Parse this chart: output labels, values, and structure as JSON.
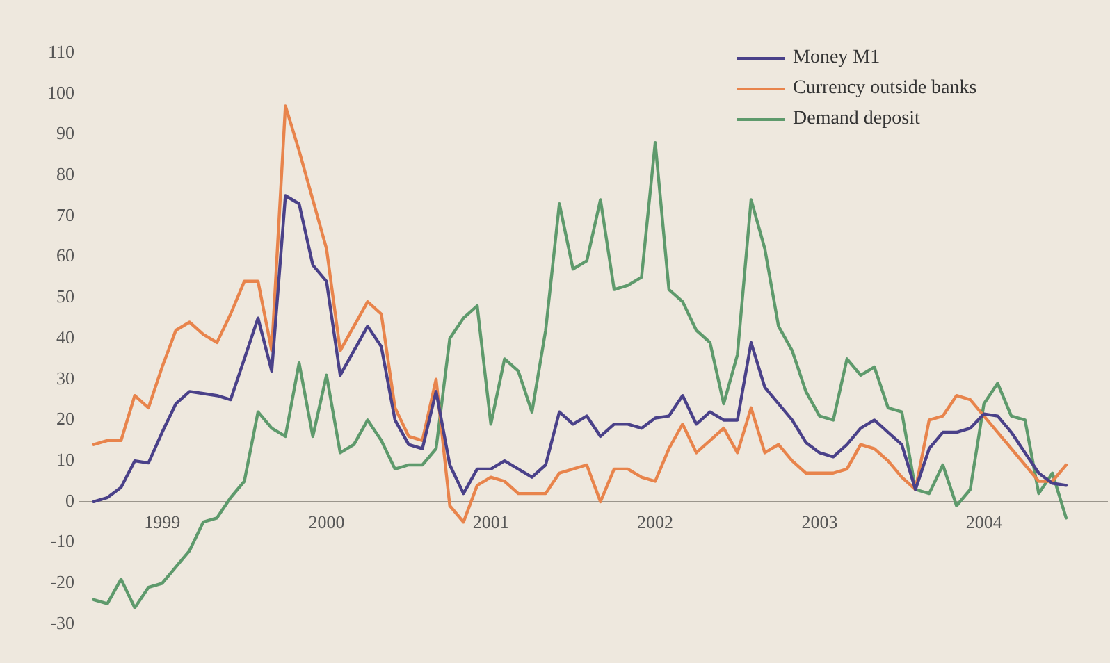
{
  "chart_data": {
    "type": "line",
    "x": [
      "1998-08",
      "1998-09",
      "1998-10",
      "1998-11",
      "1998-12",
      "1999-01",
      "1999-02",
      "1999-03",
      "1999-04",
      "1999-05",
      "1999-06",
      "1999-07",
      "1999-08",
      "1999-09",
      "1999-10",
      "1999-11",
      "1999-12",
      "2000-01",
      "2000-02",
      "2000-03",
      "2000-04",
      "2000-05",
      "2000-06",
      "2000-07",
      "2000-08",
      "2000-09",
      "2000-10",
      "2000-11",
      "2000-12",
      "2001-01",
      "2001-02",
      "2001-03",
      "2001-04",
      "2001-05",
      "2001-06",
      "2001-07",
      "2001-08",
      "2001-09",
      "2001-10",
      "2001-11",
      "2001-12",
      "2002-01",
      "2002-02",
      "2002-03",
      "2002-04",
      "2002-05",
      "2002-06",
      "2002-07",
      "2002-08",
      "2002-09",
      "2002-10",
      "2002-11",
      "2002-12",
      "2003-01",
      "2003-02",
      "2003-03",
      "2003-04",
      "2003-05",
      "2003-06",
      "2003-07",
      "2003-08",
      "2003-09",
      "2003-10",
      "2003-11",
      "2003-12",
      "2004-01",
      "2004-02",
      "2004-03",
      "2004-04",
      "2004-05",
      "2004-06",
      "2004-07"
    ],
    "series": [
      {
        "name": "Money M1",
        "color": "#4a4189",
        "values": [
          0,
          1,
          3.5,
          10,
          9.5,
          17,
          24,
          27,
          26.5,
          26,
          25,
          35,
          45,
          32,
          75,
          73,
          58,
          54,
          31,
          37,
          43,
          38,
          20,
          14,
          13,
          27,
          9,
          2,
          8,
          8,
          10,
          8,
          6,
          9,
          22,
          19,
          21,
          16,
          19,
          19,
          18,
          20.5,
          21,
          26,
          19,
          22,
          20,
          20,
          39,
          28,
          24,
          20,
          14.5,
          12,
          11,
          14,
          18,
          20,
          17,
          14,
          3,
          13,
          17,
          17,
          18,
          21.5,
          21,
          17,
          12,
          7,
          4.5,
          4
        ]
      },
      {
        "name": "Currency outside banks",
        "color": "#e8844c",
        "values": [
          14,
          15,
          15,
          26,
          23,
          33,
          42,
          44,
          41,
          39,
          46,
          54,
          54,
          37,
          97,
          86,
          74,
          62,
          37,
          43,
          49,
          46,
          23,
          16,
          15,
          30,
          -1,
          -5,
          4,
          6,
          5,
          2,
          2,
          2,
          7,
          8,
          9,
          0,
          8,
          8,
          6,
          5,
          13,
          19,
          12,
          15,
          18,
          12,
          23,
          12,
          14,
          10,
          7,
          7,
          7,
          8,
          14,
          13,
          10,
          6,
          3,
          20,
          21,
          26,
          25,
          21,
          17,
          13,
          9,
          5,
          5,
          9
        ]
      },
      {
        "name": "Demand deposit",
        "color": "#5e9a6c",
        "values": [
          -24,
          -25,
          -19,
          -26,
          -21,
          -20,
          -16,
          -12,
          -5,
          -4,
          1,
          5,
          22,
          18,
          16,
          34,
          16,
          31,
          12,
          14,
          20,
          15,
          8,
          9,
          9,
          13,
          40,
          45,
          48,
          19,
          35,
          32,
          22,
          42,
          73,
          57,
          59,
          74,
          52,
          53,
          55,
          88,
          52,
          49,
          42,
          39,
          24,
          36,
          74,
          62,
          43,
          37,
          27,
          21,
          20,
          35,
          31,
          33,
          23,
          22,
          3,
          2,
          9,
          -1,
          3,
          24,
          29,
          21,
          20,
          2,
          7,
          -4
        ]
      }
    ],
    "xlim": [
      "1998-07",
      "2004-10"
    ],
    "xticks": [
      {
        "value": "1999-01",
        "label": "1999"
      },
      {
        "value": "2000-01",
        "label": "2000"
      },
      {
        "value": "2001-01",
        "label": "2001"
      },
      {
        "value": "2002-01",
        "label": "2002"
      },
      {
        "value": "2003-01",
        "label": "2003"
      },
      {
        "value": "2004-01",
        "label": "2004"
      }
    ],
    "ylim": [
      -30,
      110
    ],
    "yticks": [
      -30,
      -20,
      -10,
      0,
      10,
      20,
      30,
      40,
      50,
      60,
      70,
      80,
      90,
      100,
      110
    ],
    "legend": "top right",
    "marker": "none",
    "line_style": "solid"
  }
}
